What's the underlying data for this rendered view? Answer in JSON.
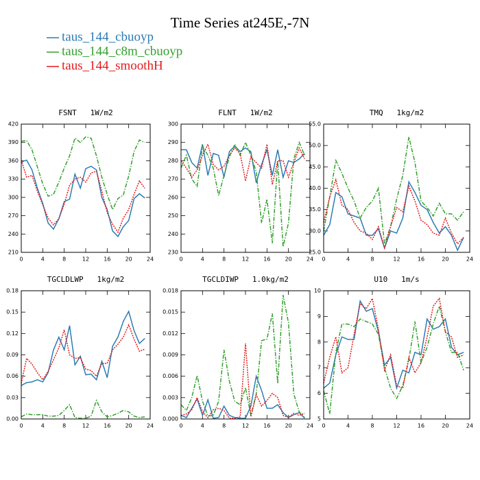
{
  "title": "Time Series at245E,-7N",
  "chart_data": [
    {
      "type": "line",
      "title": "FSNT   1W/m2",
      "x": [
        0,
        1,
        2,
        3,
        4,
        5,
        6,
        7,
        8,
        9,
        10,
        11,
        12,
        13,
        14,
        15,
        16,
        17,
        18,
        19,
        20,
        21,
        22,
        23
      ],
      "xlim": [
        0,
        24
      ],
      "xticks": [
        0,
        4,
        8,
        12,
        16,
        20,
        24
      ],
      "ylim": [
        210,
        420
      ],
      "yticks": [
        210,
        240,
        270,
        300,
        330,
        360,
        390,
        420
      ],
      "series": [
        {
          "name": "taus_144_cbuoyp",
          "color": "#2b7bb4",
          "line_style": "solid",
          "values": [
            358,
            361,
            345,
            315,
            290,
            258,
            248,
            265,
            293,
            297,
            338,
            315,
            347,
            351,
            345,
            300,
            280,
            245,
            236,
            252,
            262,
            298,
            306,
            299
          ]
        },
        {
          "name": "taus_144_c8m_cbuoyp",
          "color": "#33a02c",
          "line_style": "dashdot",
          "values": [
            392,
            393,
            378,
            350,
            322,
            302,
            305,
            325,
            348,
            368,
            397,
            390,
            399,
            397,
            368,
            333,
            305,
            280,
            298,
            304,
            335,
            375,
            394,
            390
          ]
        },
        {
          "name": "taus_144_smoothH",
          "color": "#e31a1c",
          "line_style": "dotted",
          "values": [
            361,
            333,
            336,
            310,
            288,
            266,
            255,
            265,
            289,
            320,
            330,
            333,
            325,
            340,
            343,
            310,
            275,
            256,
            243,
            266,
            280,
            305,
            327,
            315
          ]
        }
      ]
    },
    {
      "type": "line",
      "title": "FLNT   1W/m2",
      "x": [
        0,
        1,
        2,
        3,
        4,
        5,
        6,
        7,
        8,
        9,
        10,
        11,
        12,
        13,
        14,
        15,
        16,
        17,
        18,
        19,
        20,
        21,
        22,
        23
      ],
      "xlim": [
        0,
        24
      ],
      "xticks": [
        0,
        4,
        8,
        12,
        16,
        20,
        24
      ],
      "ylim": [
        230,
        300
      ],
      "yticks": [
        230,
        240,
        250,
        260,
        270,
        280,
        290,
        300
      ],
      "series": [
        {
          "name": "taus_144_cbuoyp",
          "color": "#2b7bb4",
          "line_style": "solid",
          "values": [
            286,
            286,
            279,
            276,
            289,
            272,
            284,
            283,
            271,
            285,
            288,
            285,
            287,
            285,
            268,
            278,
            286,
            272,
            286,
            271,
            280,
            279,
            281,
            284
          ]
        },
        {
          "name": "taus_144_c8m_cbuoyp",
          "color": "#33a02c",
          "line_style": "dashdot",
          "values": [
            276,
            283,
            270,
            266,
            288,
            283,
            276,
            261,
            272,
            282,
            289,
            283,
            290,
            283,
            274,
            246,
            259,
            235,
            280,
            233,
            246,
            281,
            290,
            283
          ]
        },
        {
          "name": "taus_144_smoothH",
          "color": "#e31a1c",
          "line_style": "dotted",
          "values": [
            280,
            276,
            271,
            275,
            283,
            289,
            278,
            275,
            277,
            283,
            287,
            284,
            269,
            282,
            279,
            276,
            289,
            267,
            280,
            280,
            271,
            279,
            287,
            281
          ]
        }
      ]
    },
    {
      "type": "line",
      "title": "TMQ   1kg/m2",
      "x": [
        0,
        1,
        2,
        3,
        4,
        5,
        6,
        7,
        8,
        9,
        10,
        11,
        12,
        13,
        14,
        15,
        16,
        17,
        18,
        19,
        20,
        21,
        22,
        23
      ],
      "xlim": [
        0,
        24
      ],
      "xticks": [
        0,
        4,
        8,
        12,
        16,
        20,
        24
      ],
      "ylim": [
        25,
        55
      ],
      "yticks": [
        {
          "value": 25,
          "label": "25.0"
        },
        {
          "value": 30,
          "label": "30.0"
        },
        {
          "value": 35,
          "label": "35.0"
        },
        {
          "value": 40,
          "label": "40.0"
        },
        {
          "value": 45,
          "label": "45.0"
        },
        {
          "value": 50,
          "label": "50.0"
        },
        {
          "value": 55,
          "label": "55.0"
        }
      ],
      "series": [
        {
          "name": "taus_144_cbuoyp",
          "color": "#2b7bb4",
          "line_style": "solid",
          "values": [
            29,
            31.5,
            39,
            38,
            34,
            33.5,
            33,
            29,
            29,
            30.5,
            26,
            30,
            29.5,
            33,
            41.5,
            39,
            36,
            35,
            32,
            29.5,
            31,
            29,
            25.5,
            28.5
          ]
        },
        {
          "name": "taus_144_c8m_cbuoyp",
          "color": "#33a02c",
          "line_style": "dashdot",
          "values": [
            30,
            38,
            46.5,
            43.5,
            40,
            37,
            33,
            35.5,
            37,
            40,
            27,
            31,
            37.5,
            43,
            52,
            46,
            37,
            35.5,
            33.5,
            36.5,
            34,
            34,
            32.5,
            34.5
          ]
        },
        {
          "name": "taus_144_smoothH",
          "color": "#e31a1c",
          "line_style": "dotted",
          "values": [
            32,
            38,
            42,
            36,
            35,
            32,
            30,
            29.5,
            28,
            31,
            26,
            31,
            35.5,
            34.5,
            40.5,
            37,
            32.5,
            31.5,
            29.5,
            29,
            33,
            29.5,
            27,
            28.5
          ]
        }
      ]
    },
    {
      "type": "line",
      "title": "TGCLDLWP   1kg/m2",
      "x": [
        0,
        1,
        2,
        3,
        4,
        5,
        6,
        7,
        8,
        9,
        10,
        11,
        12,
        13,
        14,
        15,
        16,
        17,
        18,
        19,
        20,
        21,
        22,
        23
      ],
      "xlim": [
        0,
        24
      ],
      "xticks": [
        0,
        4,
        8,
        12,
        16,
        20,
        24
      ],
      "ylim": [
        0,
        0.18
      ],
      "yticks": [
        {
          "value": 0,
          "label": "0.00"
        },
        {
          "value": 0.03,
          "label": "0.03"
        },
        {
          "value": 0.06,
          "label": "0.06"
        },
        {
          "value": 0.09,
          "label": "0.09"
        },
        {
          "value": 0.12,
          "label": "0.12"
        },
        {
          "value": 0.15,
          "label": "0.15"
        },
        {
          "value": 0.18,
          "label": "0.18"
        }
      ],
      "series": [
        {
          "name": "taus_144_cbuoyp",
          "color": "#2b7bb4",
          "line_style": "solid",
          "values": [
            0.047,
            0.051,
            0.052,
            0.055,
            0.052,
            0.065,
            0.097,
            0.115,
            0.097,
            0.131,
            0.076,
            0.088,
            0.062,
            0.063,
            0.055,
            0.081,
            0.058,
            0.102,
            0.115,
            0.137,
            0.151,
            0.124,
            0.106,
            0.113
          ]
        },
        {
          "name": "taus_144_c8m_cbuoyp",
          "color": "#33a02c",
          "line_style": "dashdot",
          "values": [
            0.003,
            0.007,
            0.006,
            0.006,
            0.006,
            0.004,
            0.004,
            0.005,
            0.012,
            0.02,
            0.002,
            0.001,
            0.001,
            0.004,
            0.026,
            0.01,
            0.003,
            0.005,
            0.008,
            0.012,
            0.01,
            0.004,
            0.002,
            0.003
          ]
        },
        {
          "name": "taus_144_smoothH",
          "color": "#e31a1c",
          "line_style": "dotted",
          "values": [
            0.05,
            0.085,
            0.077,
            0.065,
            0.055,
            0.067,
            0.083,
            0.1,
            0.125,
            0.09,
            0.085,
            0.086,
            0.07,
            0.068,
            0.06,
            0.078,
            0.078,
            0.097,
            0.105,
            0.115,
            0.132,
            0.112,
            0.095,
            0.098
          ]
        }
      ]
    },
    {
      "type": "line",
      "title": "TGCLDIWP   1.0kg/m2",
      "x": [
        0,
        1,
        2,
        3,
        4,
        5,
        6,
        7,
        8,
        9,
        10,
        11,
        12,
        13,
        14,
        15,
        16,
        17,
        18,
        19,
        20,
        21,
        22,
        23
      ],
      "xlim": [
        0,
        24
      ],
      "xticks": [
        0,
        4,
        8,
        12,
        16,
        20,
        24
      ],
      "ylim": [
        0,
        0.018
      ],
      "yticks": [
        {
          "value": 0,
          "label": "0.000"
        },
        {
          "value": 0.003,
          "label": "0.003"
        },
        {
          "value": 0.006,
          "label": "0.006"
        },
        {
          "value": 0.009,
          "label": "0.009"
        },
        {
          "value": 0.012,
          "label": "0.012"
        },
        {
          "value": 0.015,
          "label": "0.015"
        },
        {
          "value": 0.018,
          "label": "0.018"
        }
      ],
      "series": [
        {
          "name": "taus_144_cbuoyp",
          "color": "#2b7bb4",
          "line_style": "solid",
          "values": [
            0.0005,
            0.0002,
            0.0015,
            0.0028,
            0.0005,
            0.0027,
            0.0001,
            0.0002,
            0.0018,
            0.0005,
            0.0002,
            0.0001,
            0.0001,
            0.0018,
            0.006,
            0.004,
            0.0015,
            0.0015,
            0.002,
            0.0009,
            0.0002,
            0.0006,
            0.0009,
            0.0001
          ]
        },
        {
          "name": "taus_144_c8m_cbuoyp",
          "color": "#33a02c",
          "line_style": "dashdot",
          "values": [
            0.002,
            0.0012,
            0.003,
            0.0061,
            0.0025,
            0.0004,
            0.0005,
            0.0025,
            0.0097,
            0.0053,
            0.0025,
            0.002,
            0.0044,
            0.0005,
            0.0035,
            0.011,
            0.0112,
            0.0148,
            0.005,
            0.0174,
            0.0135,
            0.0035,
            0.001,
            0.0002
          ]
        },
        {
          "name": "taus_144_smoothH",
          "color": "#e31a1c",
          "line_style": "dotted",
          "values": [
            0.0005,
            0.0007,
            0.0013,
            0.003,
            0.001,
            0.0002,
            0.0013,
            0.0015,
            0.0012,
            0.0001,
            0.0001,
            0.0003,
            0.0106,
            0.0003,
            0.0034,
            0.0018,
            0.0026,
            0.0036,
            0.003,
            0.0005,
            0.0002,
            0.0008,
            0.0005,
            0.0008
          ]
        }
      ]
    },
    {
      "type": "line",
      "title": "U10   1m/s",
      "x": [
        0,
        1,
        2,
        3,
        4,
        5,
        6,
        7,
        8,
        9,
        10,
        11,
        12,
        13,
        14,
        15,
        16,
        17,
        18,
        19,
        20,
        21,
        22,
        23
      ],
      "xlim": [
        0,
        24
      ],
      "xticks": [
        0,
        4,
        8,
        12,
        16,
        20,
        24
      ],
      "ylim": [
        5,
        10
      ],
      "yticks": [
        5,
        6,
        7,
        8,
        9,
        10
      ],
      "series": [
        {
          "name": "taus_144_cbuoyp",
          "color": "#2b7bb4",
          "line_style": "solid",
          "values": [
            6.2,
            6.4,
            7.5,
            8.2,
            8.1,
            8.1,
            9.6,
            9.2,
            9.3,
            8.4,
            7.1,
            7.4,
            6.2,
            6.9,
            6.8,
            7.6,
            7.5,
            8.9,
            8.5,
            8.6,
            8.9,
            7.8,
            7.5,
            7.6
          ]
        },
        {
          "name": "taus_144_c8m_cbuoyp",
          "color": "#33a02c",
          "line_style": "dashdot",
          "values": [
            6.1,
            5.2,
            7.6,
            8.7,
            8.7,
            8.6,
            8.9,
            8.8,
            8.7,
            8.3,
            7.0,
            6.2,
            5.8,
            6.3,
            7.3,
            8.8,
            7.2,
            7.8,
            8.7,
            9.4,
            8.4,
            7.6,
            7.6,
            6.9
          ]
        },
        {
          "name": "taus_144_smoothH",
          "color": "#e31a1c",
          "line_style": "dotted",
          "values": [
            6.4,
            7.4,
            8.2,
            6.8,
            7.0,
            8.3,
            9.5,
            9.3,
            9.7,
            8.5,
            6.9,
            7.5,
            6.3,
            6.2,
            7.4,
            6.8,
            7.2,
            8.2,
            9.4,
            9.7,
            8.4,
            8.2,
            7.4,
            7.5
          ]
        }
      ]
    }
  ]
}
